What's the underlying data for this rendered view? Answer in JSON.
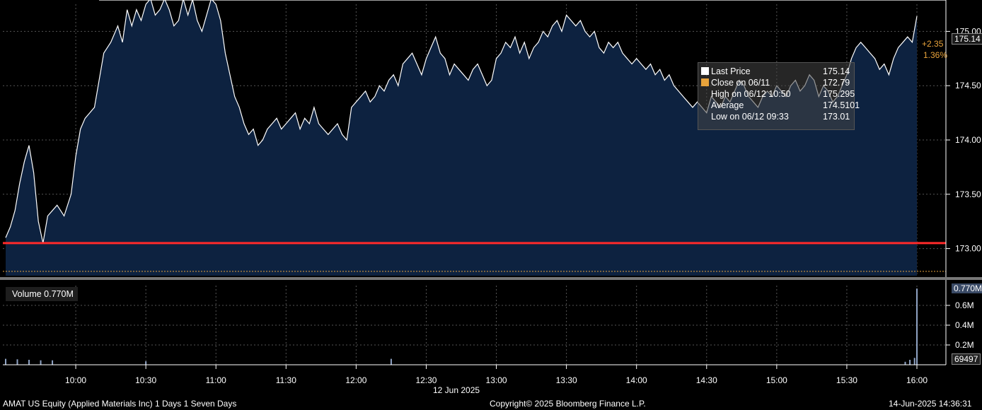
{
  "chart_data": [
    {
      "type": "area",
      "panel": "price",
      "x_labels": [
        "10:00",
        "10:30",
        "11:00",
        "11:30",
        "12:00",
        "12:30",
        "13:00",
        "13:30",
        "14:00",
        "14:30",
        "15:00",
        "15:30",
        "16:00"
      ],
      "x_date_label": "12 Jun 2025",
      "y_ticks": [
        "173.00",
        "173.50",
        "174.00",
        "174.50",
        "175.00"
      ],
      "ylim": [
        172.75,
        175.25
      ],
      "grid": true,
      "series": [
        {
          "name": "Last Price",
          "color": "#ffffff",
          "x": [
            "09:30",
            "09:32",
            "09:34",
            "09:36",
            "09:38",
            "09:40",
            "09:42",
            "09:44",
            "09:46",
            "09:48",
            "09:50",
            "09:52",
            "09:55",
            "09:58",
            "10:00",
            "10:02",
            "10:04",
            "10:06",
            "10:08",
            "10:10",
            "10:12",
            "10:15",
            "10:18",
            "10:20",
            "10:22",
            "10:24",
            "10:26",
            "10:28",
            "10:30",
            "10:32",
            "10:34",
            "10:36",
            "10:38",
            "10:40",
            "10:42",
            "10:44",
            "10:46",
            "10:48",
            "10:50",
            "10:52",
            "10:54",
            "10:56",
            "10:58",
            "11:00",
            "11:02",
            "11:04",
            "11:06",
            "11:08",
            "11:10",
            "11:12",
            "11:14",
            "11:16",
            "11:18",
            "11:20",
            "11:22",
            "11:24",
            "11:26",
            "11:28",
            "11:30",
            "11:32",
            "11:34",
            "11:36",
            "11:38",
            "11:40",
            "11:42",
            "11:44",
            "11:46",
            "11:48",
            "11:50",
            "11:52",
            "11:54",
            "11:56",
            "11:58",
            "12:00",
            "12:02",
            "12:04",
            "12:06",
            "12:08",
            "12:10",
            "12:12",
            "12:14",
            "12:16",
            "12:18",
            "12:20",
            "12:22",
            "12:24",
            "12:26",
            "12:28",
            "12:30",
            "12:32",
            "12:34",
            "12:36",
            "12:38",
            "12:40",
            "12:42",
            "12:44",
            "12:46",
            "12:48",
            "12:50",
            "12:52",
            "12:54",
            "12:56",
            "12:58",
            "13:00",
            "13:02",
            "13:04",
            "13:06",
            "13:08",
            "13:10",
            "13:12",
            "13:14",
            "13:16",
            "13:18",
            "13:20",
            "13:22",
            "13:24",
            "13:26",
            "13:28",
            "13:30",
            "13:32",
            "13:34",
            "13:36",
            "13:38",
            "13:40",
            "13:42",
            "13:44",
            "13:46",
            "13:48",
            "13:50",
            "13:52",
            "13:54",
            "13:56",
            "13:58",
            "14:00",
            "14:02",
            "14:04",
            "14:06",
            "14:08",
            "14:10",
            "14:12",
            "14:14",
            "14:16",
            "14:18",
            "14:20",
            "14:22",
            "14:24",
            "14:26",
            "14:28",
            "14:30",
            "14:32",
            "14:34",
            "14:36",
            "14:38",
            "14:40",
            "14:42",
            "14:44",
            "14:46",
            "14:48",
            "14:50",
            "14:52",
            "14:54",
            "14:56",
            "14:58",
            "15:00",
            "15:02",
            "15:04",
            "15:06",
            "15:08",
            "15:10",
            "15:12",
            "15:14",
            "15:16",
            "15:18",
            "15:20",
            "15:22",
            "15:24",
            "15:26",
            "15:28",
            "15:30",
            "15:32",
            "15:34",
            "15:36",
            "15:38",
            "15:40",
            "15:42",
            "15:44",
            "15:46",
            "15:48",
            "15:50",
            "15:52",
            "15:54",
            "15:56",
            "15:58",
            "16:00"
          ],
          "values": [
            173.1,
            173.2,
            173.35,
            173.6,
            173.8,
            173.95,
            173.7,
            173.25,
            173.05,
            173.3,
            173.35,
            173.4,
            173.3,
            173.5,
            173.85,
            174.1,
            174.2,
            174.25,
            174.3,
            174.55,
            174.8,
            174.9,
            175.05,
            174.9,
            175.2,
            175.05,
            175.2,
            175.1,
            175.25,
            175.3,
            175.15,
            175.2,
            175.3,
            175.2,
            175.05,
            175.1,
            175.3,
            175.15,
            175.295,
            175.1,
            175.0,
            175.15,
            175.3,
            175.25,
            175.1,
            174.8,
            174.6,
            174.4,
            174.3,
            174.15,
            174.05,
            174.1,
            173.95,
            174.0,
            174.1,
            174.15,
            174.2,
            174.1,
            174.15,
            174.2,
            174.25,
            174.1,
            174.2,
            174.15,
            174.3,
            174.15,
            174.1,
            174.05,
            174.1,
            174.15,
            174.05,
            174.0,
            174.3,
            174.35,
            174.4,
            174.45,
            174.35,
            174.4,
            174.5,
            174.45,
            174.55,
            174.6,
            174.5,
            174.7,
            174.75,
            174.8,
            174.7,
            174.6,
            174.75,
            174.85,
            174.95,
            174.8,
            174.75,
            174.6,
            174.7,
            174.65,
            174.6,
            174.55,
            174.65,
            174.7,
            174.6,
            174.5,
            174.55,
            174.75,
            174.8,
            174.9,
            174.85,
            174.95,
            174.8,
            174.9,
            174.75,
            174.85,
            174.9,
            175.0,
            174.95,
            175.05,
            175.1,
            175.0,
            175.15,
            175.1,
            175.05,
            175.1,
            175.0,
            174.95,
            175.0,
            174.85,
            174.8,
            174.9,
            174.85,
            174.9,
            174.8,
            174.75,
            174.7,
            174.75,
            174.7,
            174.65,
            174.7,
            174.6,
            174.65,
            174.55,
            174.6,
            174.5,
            174.45,
            174.4,
            174.35,
            174.3,
            174.35,
            174.3,
            174.25,
            174.4,
            174.35,
            174.3,
            174.4,
            174.35,
            174.45,
            174.55,
            174.5,
            174.4,
            174.35,
            174.3,
            174.4,
            174.45,
            174.4,
            174.5,
            174.45,
            174.4,
            174.5,
            174.55,
            174.45,
            174.5,
            174.6,
            174.55,
            174.4,
            174.5,
            174.45,
            174.35,
            174.4,
            174.5,
            174.6,
            174.75,
            174.85,
            174.9,
            174.85,
            174.8,
            174.75,
            174.65,
            174.7,
            174.6,
            174.75,
            174.85,
            174.9,
            174.95,
            174.9,
            175.14
          ]
        },
        {
          "name": "Close on 06/11",
          "color": "#e8a33b",
          "value": 172.79
        }
      ],
      "reference_lines": [
        {
          "value": 175.295,
          "color": "#ffffff"
        },
        {
          "value": 173.05,
          "color": "#ff2a2a"
        }
      ],
      "last_price_label": "175.14",
      "change_label": "+2.35",
      "change_pct_label": "1.36%",
      "legend": {
        "placement": "top-right",
        "rows": [
          {
            "label": "Last Price",
            "value": "175.14",
            "color": "#ffffff"
          },
          {
            "label": "Close on 06/11",
            "value": "172.79",
            "color": "#e8a33b"
          },
          {
            "label": "High on 06/12 10:50",
            "value": "175.295"
          },
          {
            "label": "Average",
            "value": "174.5101"
          },
          {
            "label": "Low on 06/12 09:33",
            "value": "173.01"
          }
        ]
      }
    },
    {
      "type": "bar",
      "panel": "volume",
      "series": [
        {
          "name": "Volume",
          "color": "#8fa3c4",
          "x": [
            "09:30",
            "09:35",
            "09:40",
            "09:45",
            "09:50",
            "10:30",
            "12:15",
            "15:55",
            "15:57",
            "15:59",
            "16:00"
          ],
          "values": [
            60000,
            55000,
            50000,
            45000,
            45000,
            35000,
            60000,
            30000,
            50000,
            69497,
            770000
          ]
        }
      ],
      "legend_label": "Volume 0.770M",
      "y_ticks": [
        "0.2M",
        "0.4M",
        "0.6M"
      ],
      "ylim": [
        0,
        800000
      ],
      "last_value_label": "0.770M",
      "last_bar_label": "69497"
    }
  ],
  "footer": {
    "left": "AMAT US Equity (Applied Materials Inc) 1 Days 1 Seven Days",
    "center": "Copyright© 2025 Bloomberg Finance L.P.",
    "right": "14-Jun-2025 14:36:31"
  }
}
